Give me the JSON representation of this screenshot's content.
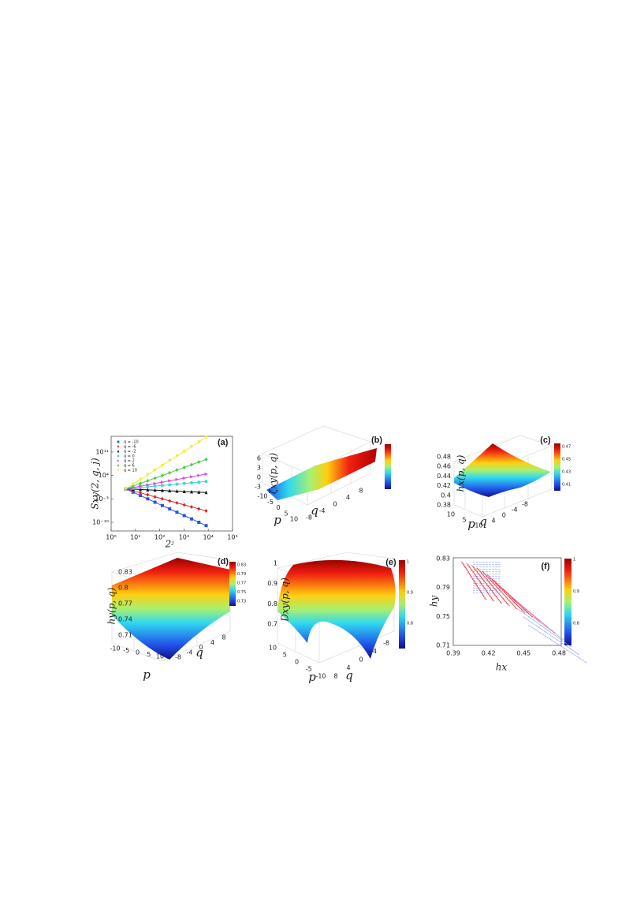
{
  "chart_data": {
    "type": "line",
    "panel_label": "(a)",
    "x_label": "2ʲ",
    "y_label": "Sxy(2, q, j)",
    "log_scale": true,
    "x": [
      4,
      8,
      16,
      32,
      64,
      128,
      256,
      512,
      1024,
      2048,
      4096,
      8192
    ],
    "xlim": [
      1,
      100000
    ],
    "ylim": [
      2.5e-13,
      5000000000000000.0
    ],
    "xticks": [
      {
        "value": 1,
        "label": "10⁰"
      },
      {
        "value": 10,
        "label": "10¹"
      },
      {
        "value": 100,
        "label": "10²"
      },
      {
        "value": 1000,
        "label": "10³"
      },
      {
        "value": 10000,
        "label": "10⁴"
      },
      {
        "value": 100000,
        "label": "10⁵"
      }
    ],
    "yticks": [
      {
        "value": 1e-10,
        "label": "10⁻¹⁰"
      },
      {
        "value": 0.001,
        "label": "10⁻³"
      },
      {
        "value": 10000,
        "label": "10⁴"
      },
      {
        "value": 100000000000.0,
        "label": "10¹¹"
      }
    ],
    "series": [
      {
        "name": "q = -10",
        "color": "#2a55d8",
        "values": [
          1,
          0.1,
          0.01,
          0.001,
          0.0001,
          1e-05,
          1e-06,
          1e-07,
          1e-08,
          1e-09,
          1e-10,
          1e-11
        ]
      },
      {
        "name": "q = -6",
        "color": "#e02424",
        "values": [
          1,
          0.25,
          0.063,
          0.016,
          0.004,
          0.001,
          0.00025,
          6.3e-05,
          1.6e-05,
          4e-06,
          1e-06,
          2.5e-07
        ]
      },
      {
        "name": "q = -2",
        "color": "#111111",
        "values": [
          1,
          0.79,
          0.63,
          0.5,
          0.4,
          0.32,
          0.25,
          0.2,
          0.16,
          0.13,
          0.1,
          0.079
        ]
      },
      {
        "name": "q = 0",
        "color": "#46d2e2",
        "values": [
          1,
          1.6,
          2.5,
          4,
          6.3,
          10,
          16,
          25,
          40,
          63,
          100,
          160
        ]
      },
      {
        "name": "q = 2",
        "color": "#e046e0",
        "values": [
          1,
          2.5,
          6.3,
          16,
          40,
          100,
          250,
          630,
          1600,
          4000,
          10000,
          25000
        ]
      },
      {
        "name": "q = 6",
        "color": "#46cc46",
        "values": [
          1,
          6.3,
          40,
          250,
          1600,
          10000,
          63000,
          400000,
          2500000,
          16000000,
          100000000,
          630000000
        ]
      },
      {
        "name": "q = 10",
        "color": "#eeee22",
        "values": [
          1,
          25,
          630,
          16000,
          400000,
          10000000,
          250000000,
          6300000000,
          160000000000,
          4000000000000,
          100000000000000,
          2500000000000000
        ]
      }
    ]
  },
  "figure": {
    "panels": [
      {
        "label": "(b)",
        "z_label": "ζxy(p, q)",
        "p_label": "p",
        "q_label": "q",
        "z_ticks": [
          "6",
          "3",
          "0",
          "-3"
        ],
        "p_ticks": [
          "-10",
          "-5",
          "0",
          "5",
          "10"
        ],
        "q_ticks": [
          "-8",
          "-4",
          "0",
          "4",
          "8"
        ]
      },
      {
        "label": "(c)",
        "z_label": "hx(p, q)",
        "p_label": "p",
        "q_label": "q",
        "z_ticks": [
          "0.48",
          "0.46",
          "0.44",
          "0.42",
          "0.4",
          "0.38"
        ],
        "p_ticks": [
          "10",
          "5",
          "-10"
        ],
        "q_ticks": [
          "4",
          "0",
          "-4",
          "-8"
        ],
        "colorbar_ticks": [
          "0.47",
          "0.45",
          "0.43",
          "0.41"
        ]
      },
      {
        "label": "(d)",
        "z_label": "hy(p, q)",
        "p_label": "p",
        "q_label": "q",
        "z_ticks": [
          "0.83",
          "0.8",
          "0.77",
          "0.74",
          "0.71"
        ],
        "p_ticks": [
          "-10",
          "-5",
          "0",
          "5",
          "10"
        ],
        "q_ticks": [
          "-8",
          "-4",
          "0",
          "4",
          "8"
        ],
        "colorbar_ticks": [
          "0.83",
          "0.79",
          "0.77",
          "0.75",
          "0.73"
        ]
      },
      {
        "label": "(e)",
        "z_label": "Dxy(p, q)",
        "p_label": "p",
        "q_label": "q",
        "z_ticks": [
          "1",
          "0.9",
          "0.8",
          "0.7"
        ],
        "p_ticks": [
          "10",
          "5",
          "0",
          "-5",
          "-10"
        ],
        "q_ticks": [
          "8",
          "4",
          "0",
          "-4",
          "-8"
        ],
        "colorbar_ticks": [
          "1",
          "0.9",
          "0.8"
        ]
      },
      {
        "label": "(f)",
        "x_label": "hx",
        "y_label": "hy",
        "x_ticks": [
          "0.39",
          "0.42",
          "0.45",
          "0.48"
        ],
        "y_ticks": [
          "0.83",
          "0.79",
          "0.75",
          "0.71"
        ],
        "colorbar_ticks": [
          "1",
          "0.9",
          "0.8"
        ]
      }
    ]
  }
}
